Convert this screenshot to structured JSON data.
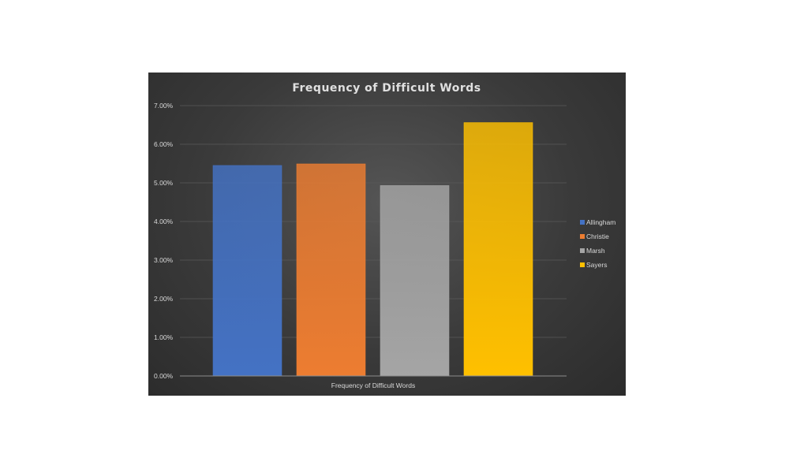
{
  "chart_data": {
    "type": "bar",
    "title": "Frequency of Difficult Words",
    "xlabel": "Frequency of Difficult Words",
    "ylabel": "",
    "categories": [
      "Frequency of Difficult Words"
    ],
    "ylim": [
      0,
      0.07
    ],
    "yticks": [
      "0.00%",
      "1.00%",
      "2.00%",
      "3.00%",
      "4.00%",
      "5.00%",
      "6.00%",
      "7.00%"
    ],
    "grid": true,
    "legend_position": "right",
    "series": [
      {
        "name": "Allingham",
        "values": [
          0.0545
        ],
        "color": "#4472c4"
      },
      {
        "name": "Christie",
        "values": [
          0.0549
        ],
        "color": "#ed7d31"
      },
      {
        "name": "Marsh",
        "values": [
          0.0493
        ],
        "color": "#a5a5a5"
      },
      {
        "name": "Sayers",
        "values": [
          0.0656
        ],
        "color": "#ffc000"
      }
    ]
  }
}
